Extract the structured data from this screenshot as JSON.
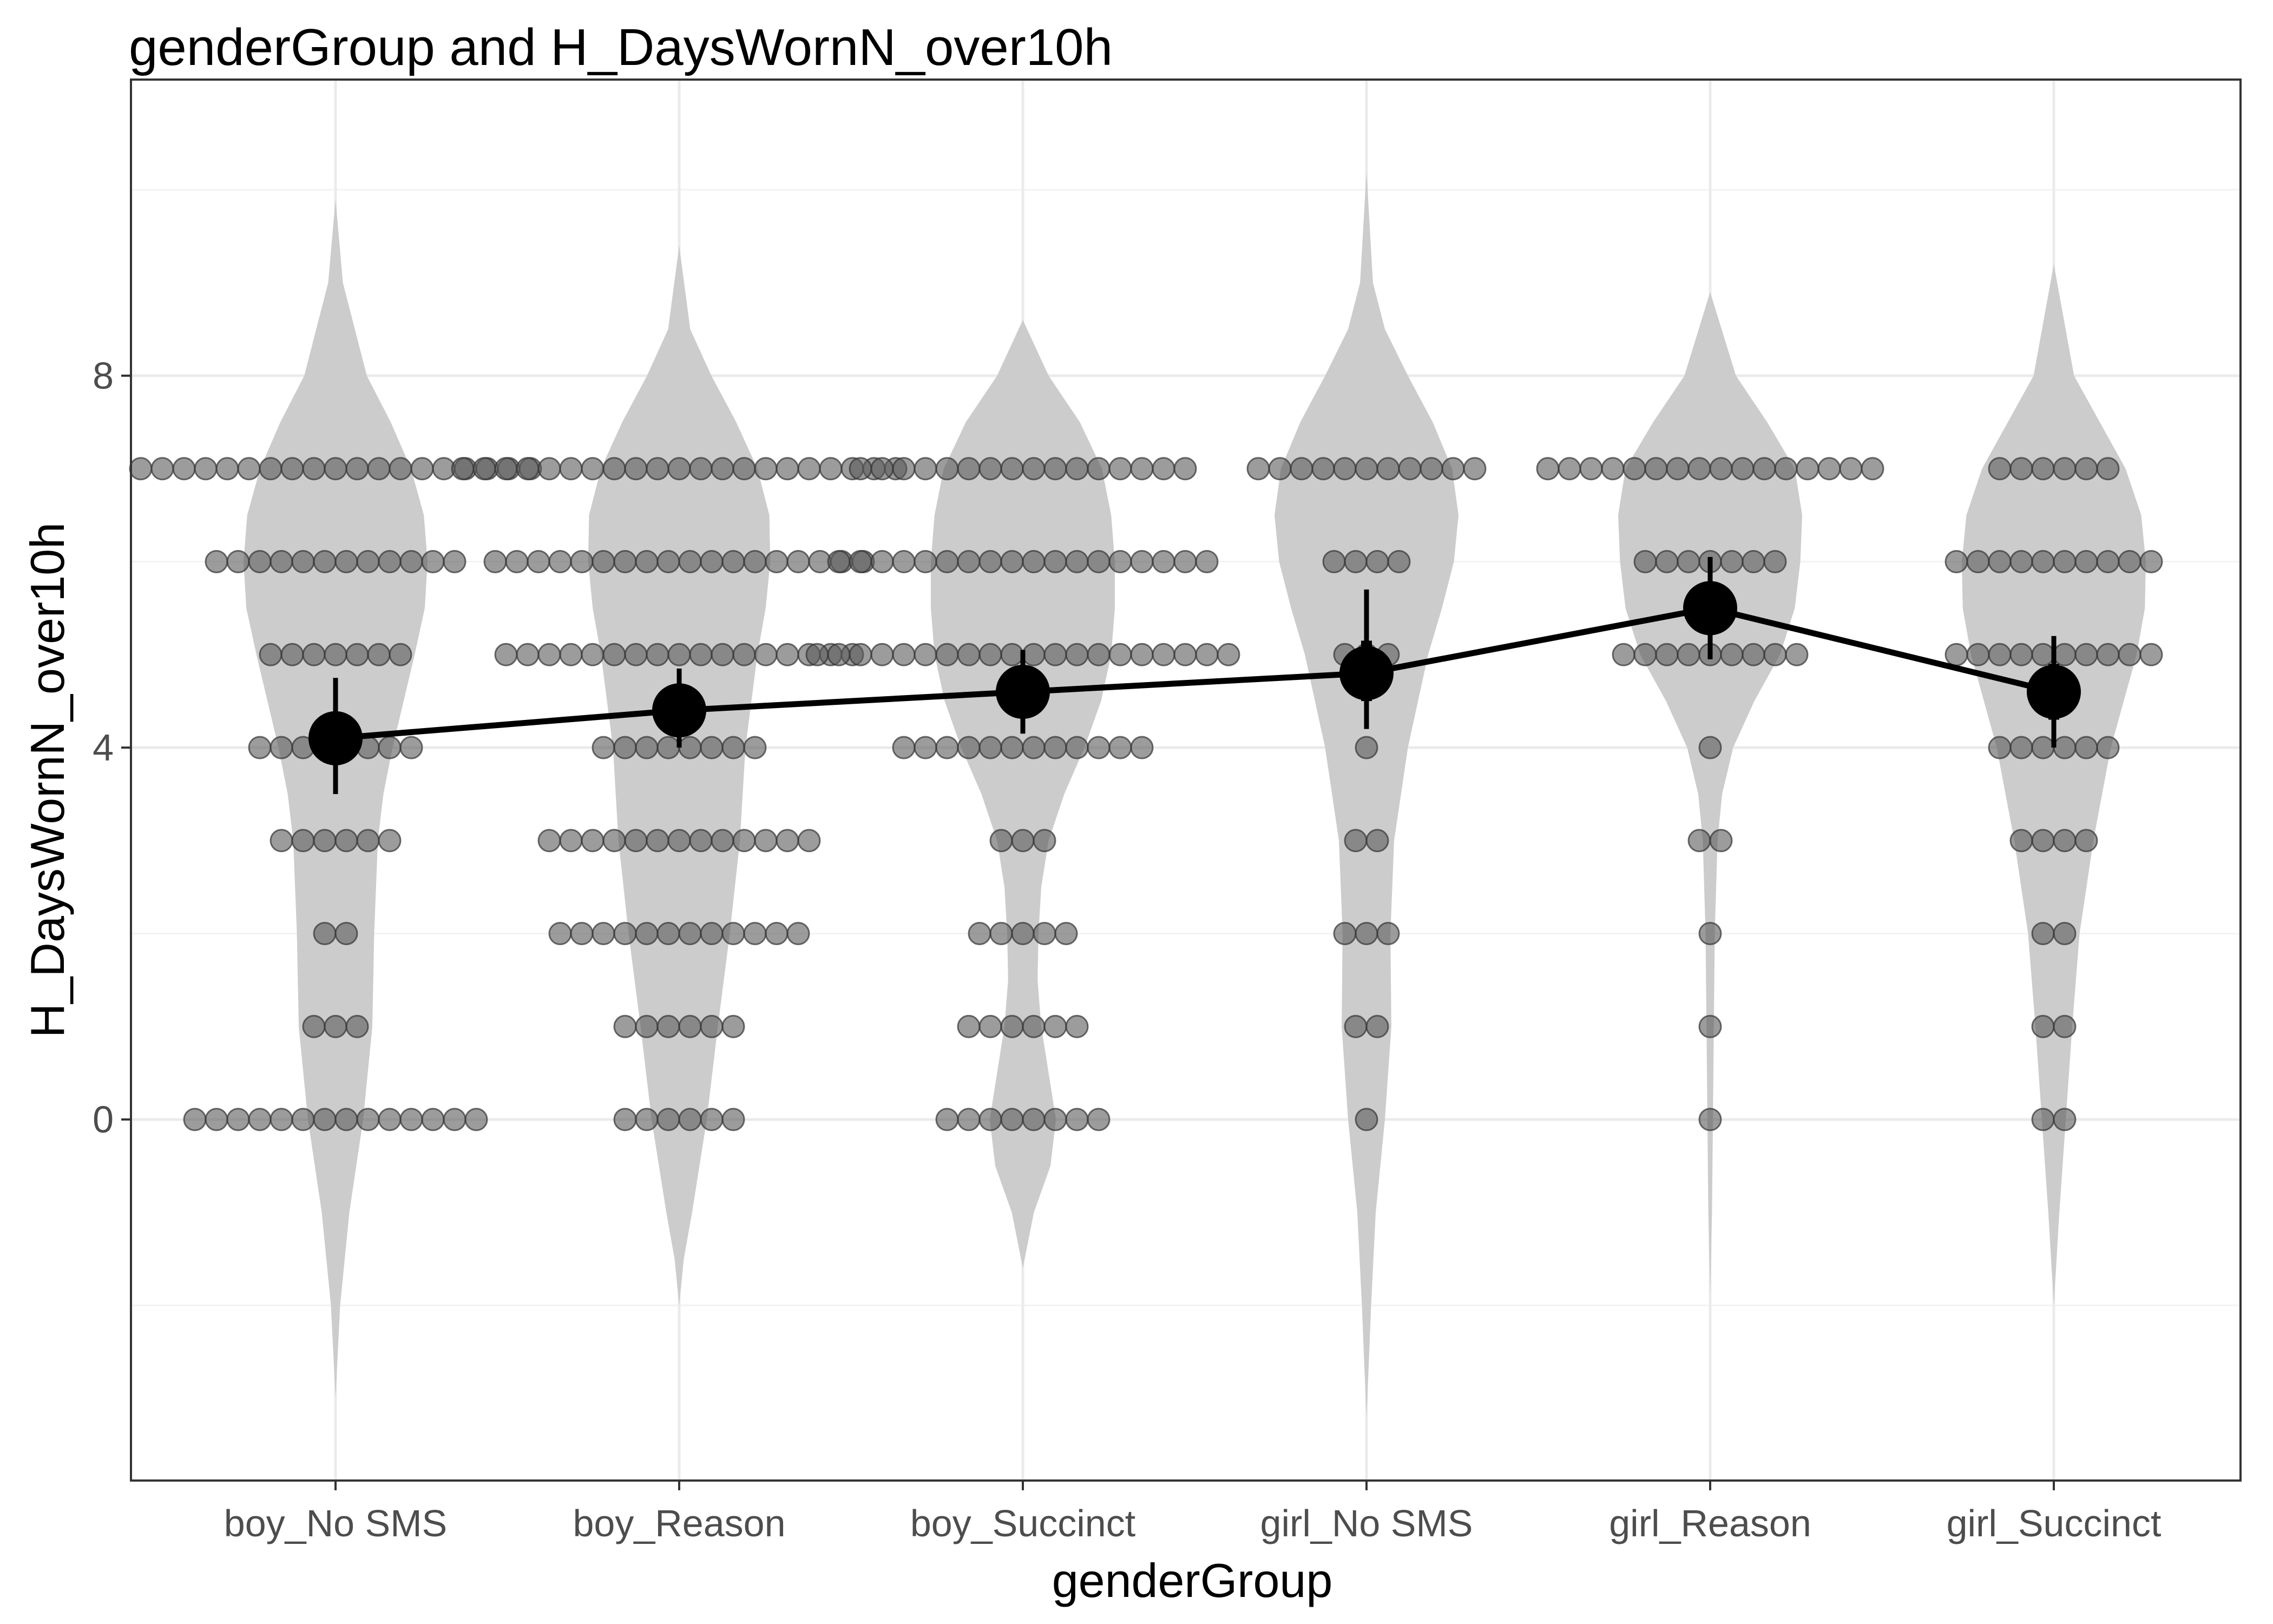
{
  "chart_data": {
    "type": "violin-dotplot",
    "title": "genderGroup and H_DaysWornN_over10h",
    "xlabel": "genderGroup",
    "ylabel": "H_DaysWornN_over10h",
    "ylim": [
      -3.9,
      10.4
    ],
    "yticks": [
      0,
      4,
      8
    ],
    "ytick_labels": [
      "0",
      "4",
      "8"
    ],
    "grid": true,
    "colors": {
      "violin": "#cccccc",
      "dot_fill": "#5a5a5a",
      "dot_stroke": "#333333",
      "summary": "#000000",
      "grid_major": "#ebebeb",
      "grid_minor": "#f3f3f3",
      "panel_border": "#333333"
    },
    "categories": [
      "boy_No SMS",
      "boy_Reason",
      "boy_Succinct",
      "girl_No SMS",
      "girl_Reason",
      "girl_Succinct"
    ],
    "groups": [
      {
        "name": "boy_No SMS",
        "mean": 4.1,
        "ci_low": 3.5,
        "ci_high": 4.75,
        "se_low": 3.85,
        "se_high": 4.35,
        "counts": {
          "0": 14,
          "1": 3,
          "2": 2,
          "3": 6,
          "4": 8,
          "5": 7,
          "6": 12,
          "7": 19
        },
        "violin": {
          "y": [
            -3.0,
            -2.0,
            -1.0,
            0.0,
            1.0,
            2.0,
            3.0,
            3.5,
            4.0,
            4.5,
            5.0,
            5.5,
            6.0,
            6.5,
            7.0,
            7.5,
            8.0,
            9.0,
            9.9
          ],
          "w": [
            0.0,
            0.05,
            0.15,
            0.3,
            0.4,
            0.42,
            0.46,
            0.52,
            0.62,
            0.74,
            0.86,
            0.97,
            1.0,
            0.96,
            0.82,
            0.6,
            0.34,
            0.08,
            0.0
          ]
        }
      },
      {
        "name": "boy_Reason",
        "mean": 4.4,
        "ci_low": 4.0,
        "ci_high": 4.85,
        "se_low": 4.2,
        "se_high": 4.6,
        "counts": {
          "0": 6,
          "1": 6,
          "2": 12,
          "3": 13,
          "4": 8,
          "5": 17,
          "6": 18,
          "7": 21
        },
        "violin": {
          "y": [
            -2.0,
            -1.5,
            -1.0,
            -0.5,
            0.0,
            1.0,
            2.0,
            3.0,
            4.0,
            5.0,
            5.5,
            6.0,
            6.5,
            7.0,
            7.5,
            8.0,
            8.5,
            9.4
          ],
          "w": [
            0.0,
            0.05,
            0.14,
            0.22,
            0.3,
            0.42,
            0.55,
            0.66,
            0.72,
            0.85,
            0.94,
            0.99,
            0.98,
            0.85,
            0.62,
            0.35,
            0.12,
            0.0
          ]
        }
      },
      {
        "name": "boy_Succinct",
        "mean": 4.6,
        "ci_low": 4.15,
        "ci_high": 5.05,
        "se_low": 4.38,
        "se_high": 4.82,
        "counts": {
          "0": 8,
          "1": 6,
          "2": 5,
          "3": 3,
          "4": 12,
          "5": 20,
          "6": 18,
          "7": 16
        },
        "violin": {
          "y": [
            -1.6,
            -1.0,
            -0.5,
            0.0,
            0.5,
            1.0,
            1.5,
            2.0,
            2.5,
            3.0,
            3.5,
            4.0,
            4.5,
            5.0,
            5.5,
            6.0,
            6.5,
            7.0,
            7.5,
            8.0,
            8.6
          ],
          "w": [
            0.0,
            0.12,
            0.3,
            0.36,
            0.28,
            0.2,
            0.16,
            0.17,
            0.2,
            0.28,
            0.45,
            0.67,
            0.85,
            0.96,
            1.0,
            1.0,
            0.96,
            0.86,
            0.62,
            0.28,
            0.0
          ]
        }
      },
      {
        "name": "girl_No SMS",
        "mean": 4.8,
        "ci_low": 4.2,
        "ci_high": 5.7,
        "se_low": 4.5,
        "se_high": 5.15,
        "counts": {
          "0": 1,
          "1": 2,
          "2": 3,
          "3": 2,
          "4": 1,
          "5": 3,
          "6": 4,
          "7": 11
        },
        "violin": {
          "y": [
            -3.2,
            -2.5,
            -2.0,
            -1.0,
            0.0,
            1.0,
            2.0,
            3.0,
            4.0,
            5.0,
            5.5,
            6.0,
            6.5,
            7.0,
            7.5,
            8.0,
            8.5,
            9.0,
            10.2
          ],
          "w": [
            0.0,
            0.03,
            0.05,
            0.1,
            0.2,
            0.27,
            0.26,
            0.3,
            0.45,
            0.67,
            0.82,
            0.95,
            1.0,
            0.93,
            0.72,
            0.45,
            0.2,
            0.07,
            0.0
          ]
        }
      },
      {
        "name": "girl_Reason",
        "mean": 5.5,
        "ci_low": 4.95,
        "ci_high": 6.05,
        "se_low": 5.25,
        "se_high": 5.75,
        "counts": {
          "0": 1,
          "1": 1,
          "2": 1,
          "3": 2,
          "4": 1,
          "5": 9,
          "6": 7,
          "7": 16
        },
        "violin": {
          "y": [
            -1.9,
            -1.0,
            0.0,
            1.0,
            2.0,
            3.0,
            3.5,
            4.0,
            4.5,
            5.0,
            5.5,
            6.0,
            6.5,
            7.0,
            7.5,
            8.0,
            8.9
          ],
          "w": [
            0.0,
            0.02,
            0.03,
            0.04,
            0.05,
            0.08,
            0.13,
            0.25,
            0.48,
            0.76,
            0.92,
            0.98,
            1.0,
            0.92,
            0.62,
            0.28,
            0.0
          ]
        }
      },
      {
        "name": "girl_Succinct",
        "mean": 4.6,
        "ci_low": 4.0,
        "ci_high": 5.2,
        "se_low": 4.3,
        "se_high": 4.9,
        "counts": {
          "0": 2,
          "1": 2,
          "2": 2,
          "3": 4,
          "4": 6,
          "5": 10,
          "6": 10,
          "7": 6
        },
        "violin": {
          "y": [
            -2.0,
            -1.0,
            0.0,
            1.0,
            2.0,
            3.0,
            4.0,
            4.5,
            5.0,
            5.5,
            6.0,
            6.5,
            7.0,
            7.5,
            8.0,
            9.2
          ],
          "w": [
            0.0,
            0.06,
            0.13,
            0.2,
            0.28,
            0.43,
            0.62,
            0.76,
            0.9,
            0.99,
            1.0,
            0.95,
            0.78,
            0.5,
            0.22,
            0.0
          ]
        }
      }
    ]
  }
}
